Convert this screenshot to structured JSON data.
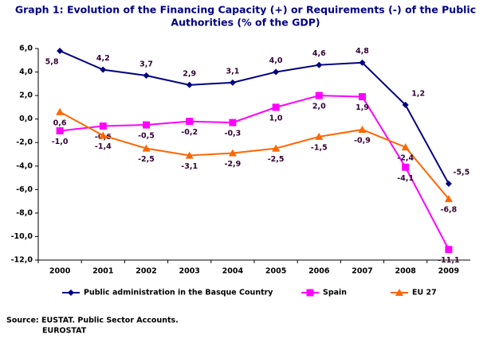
{
  "chart_data": {
    "type": "line",
    "title": [
      "Graph 1: Evolution of the Financing Capacity (+) or Requirements (-) of the Public",
      "Authorities (% of the GDP)"
    ],
    "categories": [
      "2000",
      "2001",
      "2002",
      "2003",
      "2004",
      "2005",
      "2006",
      "2007",
      "2008",
      "2009"
    ],
    "series": [
      {
        "name": "Public administration in the Basque Country",
        "color": "#000080",
        "marker": "diamond",
        "values": [
          5.8,
          4.2,
          3.7,
          2.9,
          3.1,
          4.0,
          4.6,
          4.8,
          1.2,
          -5.5
        ],
        "value_labels": [
          "5,8",
          "4,2",
          "3,7",
          "2,9",
          "3,1",
          "4,0",
          "4,6",
          "4,8",
          "1,2",
          "-5,5"
        ]
      },
      {
        "name": "Spain",
        "color": "#ff00ff",
        "marker": "square",
        "values": [
          -1.0,
          -0.6,
          -0.5,
          -0.2,
          -0.3,
          1.0,
          2.0,
          1.9,
          -4.1,
          -11.1
        ],
        "value_labels": [
          "-1,0",
          "-0,6",
          "-0,5",
          "-0,2",
          "-0,3",
          "1,0",
          "2,0",
          "1,9",
          "-4,1",
          "-11,1"
        ]
      },
      {
        "name": "EU 27",
        "color": "#ff6600",
        "marker": "triangle",
        "values": [
          0.6,
          -1.4,
          -2.5,
          -3.1,
          -2.9,
          -2.5,
          -1.5,
          -0.9,
          -2.4,
          -6.8
        ],
        "value_labels": [
          "0,6",
          "-1,4",
          "-2,5",
          "-3,1",
          "-2,9",
          "-2,5",
          "-1,5",
          "-0,9",
          "-2,4",
          "-6,8"
        ]
      }
    ],
    "ylim": [
      -12,
      6
    ],
    "yticks": [
      {
        "value": 6,
        "label": "6,0"
      },
      {
        "value": 4,
        "label": "4,0"
      },
      {
        "value": 2,
        "label": "2,0"
      },
      {
        "value": 0,
        "label": "0,0"
      },
      {
        "value": -2,
        "label": "-2,0"
      },
      {
        "value": -4,
        "label": "-4,0"
      },
      {
        "value": -6,
        "label": "-6,0"
      },
      {
        "value": -8,
        "label": "-8,0"
      },
      {
        "value": -10,
        "label": "-10,0"
      },
      {
        "value": -12,
        "label": "-12,0"
      }
    ],
    "legend": "bottom",
    "source": [
      "Source: EUSTAT. Public Sector Accounts.",
      "EUROSTAT"
    ]
  }
}
